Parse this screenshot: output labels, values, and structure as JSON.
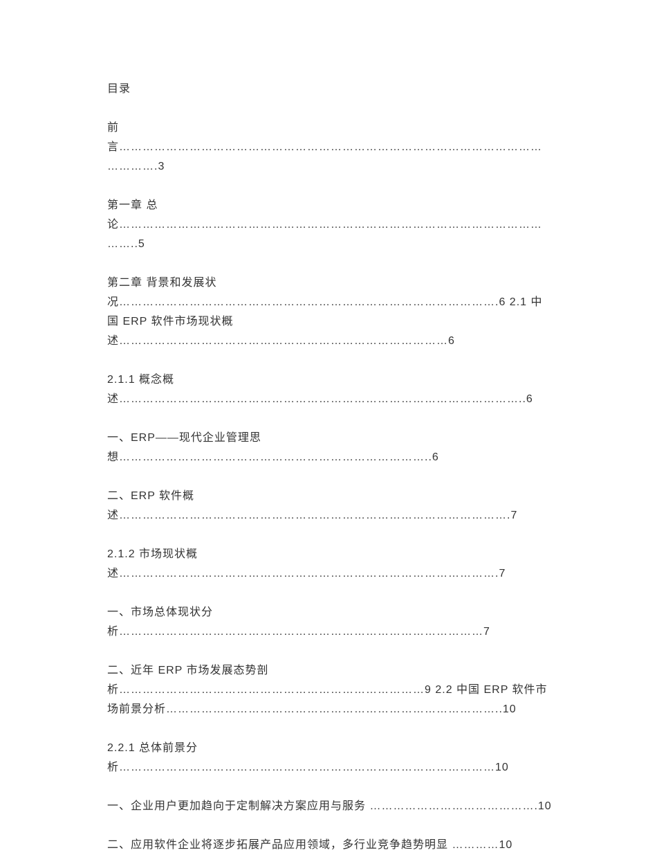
{
  "toc": {
    "title": "目录",
    "entries": [
      "前言………………………………………………………………………………………………………….3",
      "第一章 总论……………………………………………………………………………………………………..5",
      "第二章 背景和发展状况…………………………………………………………………………………….6  2.1 中国 ERP 软件市场现状概述…………………………………………………………………………6",
      "2.1.1 概念概述…………………………………………………………………………………………..6",
      "一、ERP——现代企业管理思想……………………………………………………………………..6",
      "二、ERP 软件概述……………………………………………………………………………………….7",
      "2.1.2 市场现状概述…………………………………………………………………………………….7",
      "一、市场总体现状分析…………………………………………………………………………………7",
      "二、近年 ERP 市场发展态势剖析……………………………………………………………………9 2.2  中国 ERP 软件市场前景分析…………………………………………………………………………..10",
      "2.2.1 总体前景分析……………………………………………………………………………………10",
      "一、企业用户更加趋向于定制解决方案应用与服务 …………………………………….10",
      "二、应用软件企业将逐步拓展产品应用领域，多行业竞争趋势明显 …………10"
    ]
  }
}
